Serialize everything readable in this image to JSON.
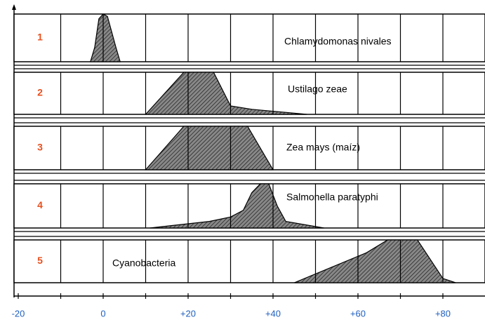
{
  "chart_data": {
    "type": "area",
    "xlim": [
      -20,
      90
    ],
    "xticks": [
      -20,
      0,
      {
        "value": 20,
        "label": "+20"
      },
      {
        "value": 40,
        "label": "+40"
      },
      {
        "value": 60,
        "label": "+60"
      },
      {
        "value": 80,
        "label": "+80"
      }
    ],
    "minor_xticks": [
      -10,
      10,
      30,
      50,
      70
    ],
    "ylim": [
      0,
      100
    ],
    "grid": true,
    "color": "#555555",
    "series": [
      {
        "label": "1",
        "name": "Chlamydomonas nivales",
        "x": [
          -3,
          -2,
          -1,
          0,
          1,
          3,
          4
        ],
        "values": [
          0,
          30,
          90,
          100,
          95,
          30,
          0
        ]
      },
      {
        "label": "2",
        "name": "Ustilago zeae",
        "x": [
          10,
          19,
          26,
          30,
          35,
          48
        ],
        "values": [
          0,
          100,
          100,
          20,
          12,
          0
        ]
      },
      {
        "label": "3",
        "name": "Zea mays (maíz)",
        "x": [
          10,
          19,
          34,
          40
        ],
        "values": [
          0,
          100,
          100,
          0
        ]
      },
      {
        "label": "4",
        "name": "Salmonella paratyphi",
        "x": [
          11,
          25,
          30,
          33,
          35,
          37,
          39,
          41,
          43,
          52
        ],
        "values": [
          0,
          15,
          25,
          40,
          80,
          100,
          100,
          50,
          15,
          0
        ]
      },
      {
        "label": "5",
        "name": "Cyanobacteria",
        "x": [
          45,
          62,
          67,
          74,
          78,
          80,
          83
        ],
        "values": [
          0,
          70,
          100,
          100,
          40,
          10,
          0
        ]
      }
    ]
  }
}
